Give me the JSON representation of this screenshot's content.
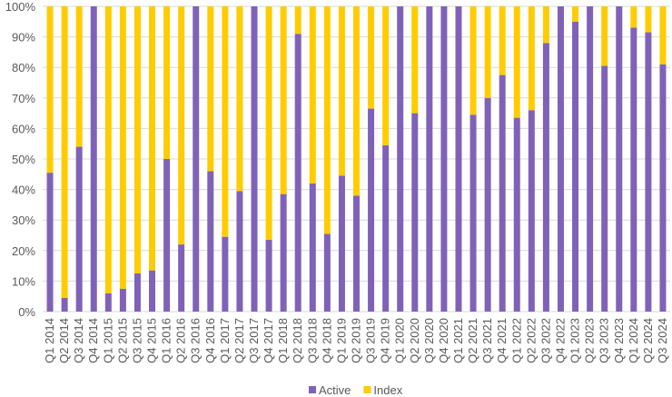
{
  "chart_data": {
    "type": "stacked_bar",
    "categories": [
      "Q1 2014",
      "Q2 2014",
      "Q3 2014",
      "Q4 2014",
      "Q1 2015",
      "Q2 2015",
      "Q3 2015",
      "Q4 2015",
      "Q1 2016",
      "Q2 2016",
      "Q3 2016",
      "Q4 2016",
      "Q1 2017",
      "Q2 2017",
      "Q3 2017",
      "Q4 2017",
      "Q1 2018",
      "Q2 2018",
      "Q3 2018",
      "Q4 2018",
      "Q1 2019",
      "Q2 2019",
      "Q3 2019",
      "Q4 2019",
      "Q1 2020",
      "Q2 2020",
      "Q3 2020",
      "Q4 2020",
      "Q1 2021",
      "Q2 2021",
      "Q3 2021",
      "Q4 2021",
      "Q1 2022",
      "Q2 2022",
      "Q3 2022",
      "Q4 2022",
      "Q1 2023",
      "Q2 2023",
      "Q3 2023",
      "Q4 2023",
      "Q1 2024",
      "Q2 2024",
      "Q3 2024"
    ],
    "series": [
      {
        "name": "Active",
        "color": "#7f62b8",
        "values": [
          45.5,
          4.5,
          54,
          100,
          6,
          7.5,
          12.5,
          13.5,
          50,
          22,
          100,
          46,
          24.5,
          39.5,
          100,
          23.5,
          38.5,
          91,
          42,
          25.5,
          44.5,
          38,
          66.5,
          54.5,
          100,
          65,
          100,
          100,
          100,
          64.5,
          70,
          77.5,
          63.5,
          66,
          88,
          100,
          95,
          100,
          80.5,
          100,
          93,
          91.5,
          81
        ]
      },
      {
        "name": "Index",
        "color": "#ffcc00",
        "values": [
          54.5,
          95.5,
          46,
          0,
          94,
          92.5,
          87.5,
          86.5,
          50,
          78,
          0,
          54,
          75.5,
          60.5,
          0,
          76.5,
          61.5,
          9,
          58,
          74.5,
          55.5,
          62,
          33.5,
          45.5,
          0,
          35,
          0,
          0,
          0,
          35.5,
          30,
          22.5,
          36.5,
          34,
          12,
          0,
          5,
          0,
          19.5,
          0,
          7,
          8.5,
          19
        ]
      }
    ],
    "ylim": [
      0,
      100
    ],
    "yticks": [
      {
        "value": 0,
        "label": "0%"
      },
      {
        "value": 10,
        "label": "10%"
      },
      {
        "value": 20,
        "label": "20%"
      },
      {
        "value": 30,
        "label": "30%"
      },
      {
        "value": 40,
        "label": "40%"
      },
      {
        "value": 50,
        "label": "50%"
      },
      {
        "value": 60,
        "label": "60%"
      },
      {
        "value": 70,
        "label": "70%"
      },
      {
        "value": 80,
        "label": "80%"
      },
      {
        "value": 90,
        "label": "90%"
      },
      {
        "value": 100,
        "label": "100%"
      }
    ],
    "grid": true,
    "legend": "bottom"
  }
}
